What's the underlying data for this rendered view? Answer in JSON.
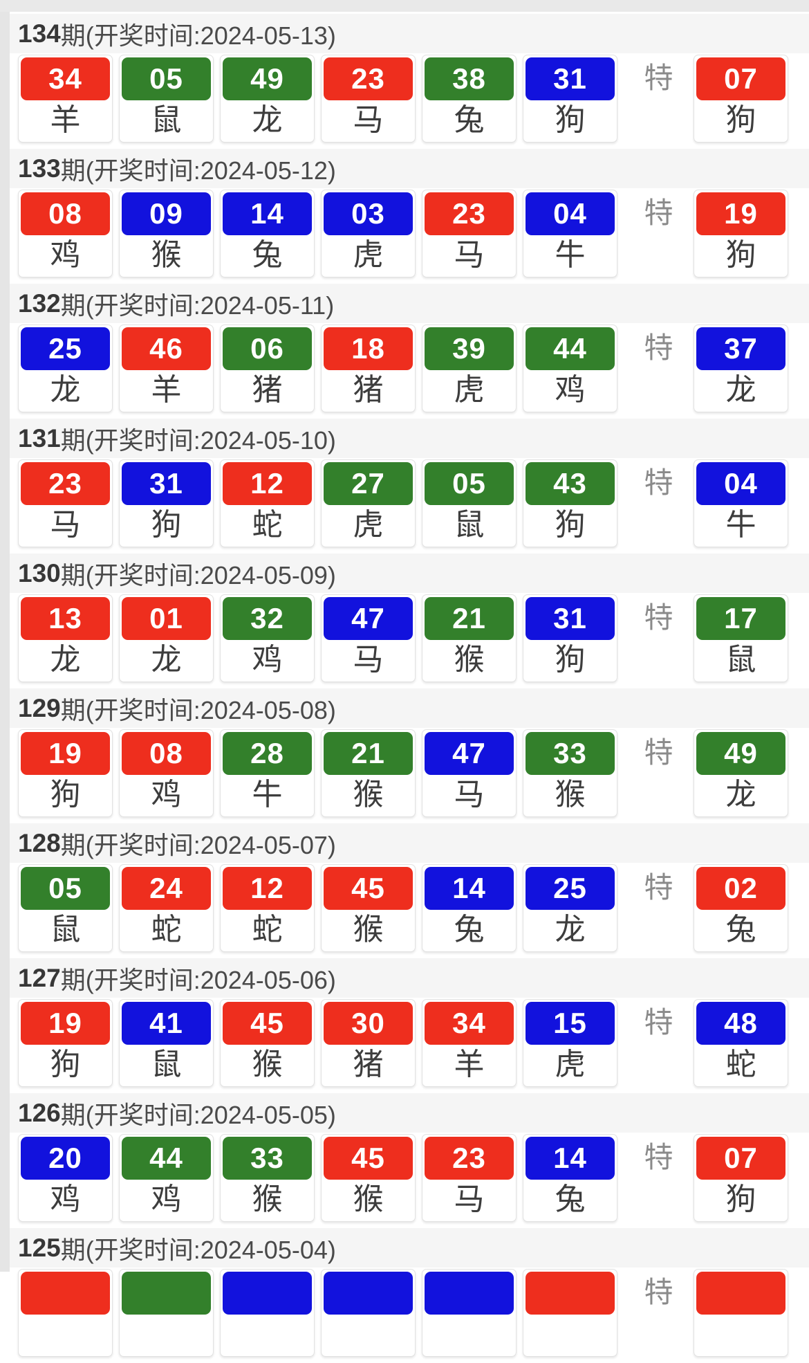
{
  "labels": {
    "special": "特"
  },
  "colors": {
    "red": "#ee2e1e",
    "green": "#33802b",
    "blue": "#1212dd"
  },
  "rows": [
    {
      "period": "134",
      "time": "期(开奖时间:2024-05-13)",
      "balls": [
        {
          "num": "34",
          "color": "red",
          "zodiac": "羊"
        },
        {
          "num": "05",
          "color": "green",
          "zodiac": "鼠"
        },
        {
          "num": "49",
          "color": "green",
          "zodiac": "龙"
        },
        {
          "num": "23",
          "color": "red",
          "zodiac": "马"
        },
        {
          "num": "38",
          "color": "green",
          "zodiac": "兔"
        },
        {
          "num": "31",
          "color": "blue",
          "zodiac": "狗"
        }
      ],
      "special": {
        "num": "07",
        "color": "red",
        "zodiac": "狗"
      }
    },
    {
      "period": "133",
      "time": "期(开奖时间:2024-05-12)",
      "balls": [
        {
          "num": "08",
          "color": "red",
          "zodiac": "鸡"
        },
        {
          "num": "09",
          "color": "blue",
          "zodiac": "猴"
        },
        {
          "num": "14",
          "color": "blue",
          "zodiac": "兔"
        },
        {
          "num": "03",
          "color": "blue",
          "zodiac": "虎"
        },
        {
          "num": "23",
          "color": "red",
          "zodiac": "马"
        },
        {
          "num": "04",
          "color": "blue",
          "zodiac": "牛"
        }
      ],
      "special": {
        "num": "19",
        "color": "red",
        "zodiac": "狗"
      }
    },
    {
      "period": "132",
      "time": "期(开奖时间:2024-05-11)",
      "balls": [
        {
          "num": "25",
          "color": "blue",
          "zodiac": "龙"
        },
        {
          "num": "46",
          "color": "red",
          "zodiac": "羊"
        },
        {
          "num": "06",
          "color": "green",
          "zodiac": "猪"
        },
        {
          "num": "18",
          "color": "red",
          "zodiac": "猪"
        },
        {
          "num": "39",
          "color": "green",
          "zodiac": "虎"
        },
        {
          "num": "44",
          "color": "green",
          "zodiac": "鸡"
        }
      ],
      "special": {
        "num": "37",
        "color": "blue",
        "zodiac": "龙"
      }
    },
    {
      "period": "131",
      "time": "期(开奖时间:2024-05-10)",
      "balls": [
        {
          "num": "23",
          "color": "red",
          "zodiac": "马"
        },
        {
          "num": "31",
          "color": "blue",
          "zodiac": "狗"
        },
        {
          "num": "12",
          "color": "red",
          "zodiac": "蛇"
        },
        {
          "num": "27",
          "color": "green",
          "zodiac": "虎"
        },
        {
          "num": "05",
          "color": "green",
          "zodiac": "鼠"
        },
        {
          "num": "43",
          "color": "green",
          "zodiac": "狗"
        }
      ],
      "special": {
        "num": "04",
        "color": "blue",
        "zodiac": "牛"
      }
    },
    {
      "period": "130",
      "time": "期(开奖时间:2024-05-09)",
      "balls": [
        {
          "num": "13",
          "color": "red",
          "zodiac": "龙"
        },
        {
          "num": "01",
          "color": "red",
          "zodiac": "龙"
        },
        {
          "num": "32",
          "color": "green",
          "zodiac": "鸡"
        },
        {
          "num": "47",
          "color": "blue",
          "zodiac": "马"
        },
        {
          "num": "21",
          "color": "green",
          "zodiac": "猴"
        },
        {
          "num": "31",
          "color": "blue",
          "zodiac": "狗"
        }
      ],
      "special": {
        "num": "17",
        "color": "green",
        "zodiac": "鼠"
      }
    },
    {
      "period": "129",
      "time": "期(开奖时间:2024-05-08)",
      "balls": [
        {
          "num": "19",
          "color": "red",
          "zodiac": "狗"
        },
        {
          "num": "08",
          "color": "red",
          "zodiac": "鸡"
        },
        {
          "num": "28",
          "color": "green",
          "zodiac": "牛"
        },
        {
          "num": "21",
          "color": "green",
          "zodiac": "猴"
        },
        {
          "num": "47",
          "color": "blue",
          "zodiac": "马"
        },
        {
          "num": "33",
          "color": "green",
          "zodiac": "猴"
        }
      ],
      "special": {
        "num": "49",
        "color": "green",
        "zodiac": "龙"
      }
    },
    {
      "period": "128",
      "time": "期(开奖时间:2024-05-07)",
      "balls": [
        {
          "num": "05",
          "color": "green",
          "zodiac": "鼠"
        },
        {
          "num": "24",
          "color": "red",
          "zodiac": "蛇"
        },
        {
          "num": "12",
          "color": "red",
          "zodiac": "蛇"
        },
        {
          "num": "45",
          "color": "red",
          "zodiac": "猴"
        },
        {
          "num": "14",
          "color": "blue",
          "zodiac": "兔"
        },
        {
          "num": "25",
          "color": "blue",
          "zodiac": "龙"
        }
      ],
      "special": {
        "num": "02",
        "color": "red",
        "zodiac": "兔"
      }
    },
    {
      "period": "127",
      "time": "期(开奖时间:2024-05-06)",
      "balls": [
        {
          "num": "19",
          "color": "red",
          "zodiac": "狗"
        },
        {
          "num": "41",
          "color": "blue",
          "zodiac": "鼠"
        },
        {
          "num": "45",
          "color": "red",
          "zodiac": "猴"
        },
        {
          "num": "30",
          "color": "red",
          "zodiac": "猪"
        },
        {
          "num": "34",
          "color": "red",
          "zodiac": "羊"
        },
        {
          "num": "15",
          "color": "blue",
          "zodiac": "虎"
        }
      ],
      "special": {
        "num": "48",
        "color": "blue",
        "zodiac": "蛇"
      }
    },
    {
      "period": "126",
      "time": "期(开奖时间:2024-05-05)",
      "balls": [
        {
          "num": "20",
          "color": "blue",
          "zodiac": "鸡"
        },
        {
          "num": "44",
          "color": "green",
          "zodiac": "鸡"
        },
        {
          "num": "33",
          "color": "green",
          "zodiac": "猴"
        },
        {
          "num": "45",
          "color": "red",
          "zodiac": "猴"
        },
        {
          "num": "23",
          "color": "red",
          "zodiac": "马"
        },
        {
          "num": "14",
          "color": "blue",
          "zodiac": "兔"
        }
      ],
      "special": {
        "num": "07",
        "color": "red",
        "zodiac": "狗"
      }
    },
    {
      "period": "125",
      "time": "期(开奖时间:2024-05-04)",
      "balls": [
        {
          "num": "",
          "color": "red",
          "zodiac": ""
        },
        {
          "num": "",
          "color": "green",
          "zodiac": ""
        },
        {
          "num": "",
          "color": "blue",
          "zodiac": ""
        },
        {
          "num": "",
          "color": "blue",
          "zodiac": ""
        },
        {
          "num": "",
          "color": "blue",
          "zodiac": ""
        },
        {
          "num": "",
          "color": "red",
          "zodiac": ""
        }
      ],
      "special": {
        "num": "",
        "color": "red",
        "zodiac": ""
      }
    }
  ]
}
